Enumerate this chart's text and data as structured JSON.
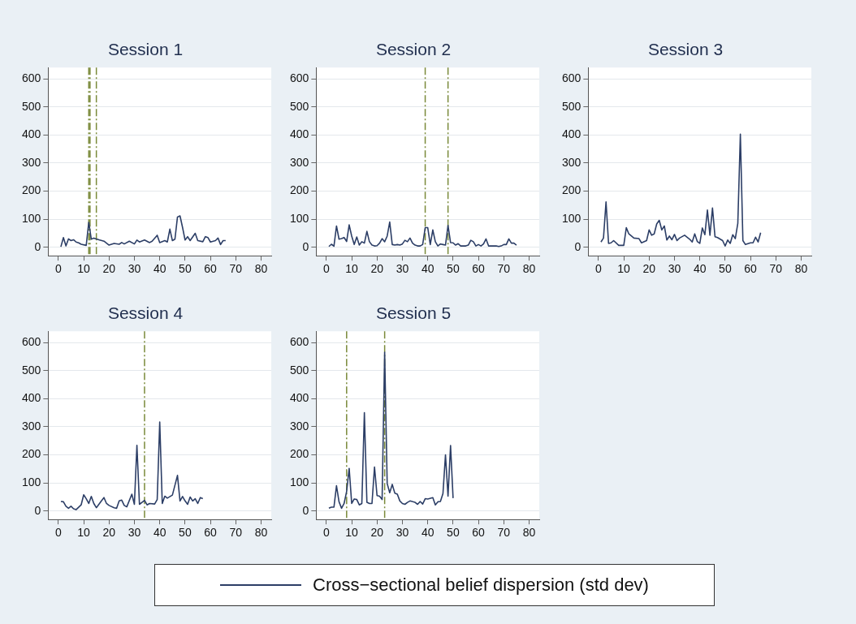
{
  "chart_data": [
    {
      "type": "line",
      "title": "Session 1",
      "xlim": [
        -4,
        84
      ],
      "xticks": [
        0,
        10,
        20,
        30,
        40,
        50,
        60,
        70,
        80
      ],
      "ylim": [
        -30,
        640
      ],
      "yticks": [
        0,
        100,
        200,
        300,
        400,
        500,
        600
      ],
      "grid": "y",
      "legend": "bottom",
      "marker": "none",
      "line_style": "solid",
      "ref_lines": [
        {
          "axis": "x",
          "value": 12,
          "color": "#7a8a3a",
          "line_style": "dashed"
        },
        {
          "axis": "x",
          "value": 12.5,
          "color": "#7a8a3a",
          "line_style": "dashed"
        },
        {
          "axis": "x",
          "value": 15,
          "color": "#7a8a3a",
          "line_style": "dashed"
        }
      ],
      "series": [
        {
          "name": "Cross−sectional belief dispersion (std dev)",
          "color": "#2c3e66",
          "x": [
            1,
            2,
            3,
            4,
            5,
            6,
            7,
            8,
            9,
            11,
            12,
            13,
            14,
            16,
            18,
            20,
            22,
            24,
            25,
            26,
            28,
            30,
            31,
            32,
            34,
            36,
            37,
            39,
            40,
            42,
            43,
            44,
            45,
            46,
            47,
            48,
            49,
            50,
            51,
            52,
            54,
            55,
            57,
            58,
            59,
            60,
            62,
            63,
            64,
            65,
            66
          ],
          "values": [
            2,
            35,
            5,
            30,
            24,
            27,
            19,
            16,
            11,
            7,
            89,
            29,
            33,
            27,
            22,
            8,
            14,
            11,
            17,
            12,
            22,
            12,
            26,
            19,
            26,
            17,
            22,
            43,
            17,
            24,
            19,
            65,
            24,
            29,
            108,
            112,
            71,
            26,
            38,
            24,
            50,
            24,
            20,
            38,
            35,
            19,
            24,
            33,
            10,
            24,
            24
          ]
        }
      ]
    },
    {
      "type": "line",
      "title": "Session 2",
      "xlim": [
        -4,
        84
      ],
      "xticks": [
        0,
        10,
        20,
        30,
        40,
        50,
        60,
        70,
        80
      ],
      "ylim": [
        -30,
        640
      ],
      "yticks": [
        0,
        100,
        200,
        300,
        400,
        500,
        600
      ],
      "grid": "y",
      "legend": "bottom",
      "marker": "none",
      "line_style": "solid",
      "ref_lines": [
        {
          "axis": "x",
          "value": 39,
          "color": "#7a8a3a",
          "line_style": "dashed"
        },
        {
          "axis": "x",
          "value": 48,
          "color": "#7a8a3a",
          "line_style": "dashed"
        }
      ],
      "series": [
        {
          "name": "Cross−sectional belief dispersion (std dev)",
          "color": "#2c3e66",
          "x": [
            1,
            2,
            3,
            4,
            5,
            6,
            7,
            8,
            9,
            10,
            11,
            12,
            13,
            14,
            15,
            16,
            17,
            18,
            19,
            20,
            21,
            22,
            23,
            24,
            25,
            26,
            27,
            28,
            29,
            30,
            31,
            32,
            33,
            34,
            35,
            36,
            37,
            38,
            39,
            40,
            41,
            42,
            43,
            44,
            45,
            46,
            47,
            48,
            49,
            50,
            51,
            52,
            53,
            54,
            55,
            56,
            57,
            58,
            59,
            60,
            61,
            62,
            63,
            64,
            65,
            66,
            67,
            68,
            69,
            70,
            71,
            72,
            73,
            74,
            75
          ],
          "values": [
            3,
            11,
            4,
            76,
            29,
            31,
            35,
            21,
            80,
            40,
            10,
            37,
            8,
            20,
            15,
            57,
            20,
            8,
            5,
            6,
            15,
            31,
            20,
            40,
            90,
            10,
            8,
            10,
            8,
            12,
            25,
            20,
            33,
            15,
            8,
            5,
            5,
            10,
            70,
            70,
            10,
            62,
            20,
            5,
            12,
            10,
            8,
            78,
            17,
            16,
            8,
            13,
            5,
            5,
            5,
            8,
            25,
            20,
            5,
            10,
            5,
            12,
            30,
            5,
            5,
            5,
            5,
            3,
            5,
            10,
            10,
            30,
            15,
            15,
            8
          ]
        }
      ]
    },
    {
      "type": "line",
      "title": "Session 3",
      "xlim": [
        -4,
        84
      ],
      "xticks": [
        0,
        10,
        20,
        30,
        40,
        50,
        60,
        70,
        80
      ],
      "ylim": [
        -30,
        640
      ],
      "yticks": [
        0,
        100,
        200,
        300,
        400,
        500,
        600
      ],
      "grid": "y",
      "legend": "bottom",
      "marker": "none",
      "line_style": "solid",
      "series": [
        {
          "name": "Cross−sectional belief dispersion (std dev)",
          "color": "#2c3e66",
          "x": [
            1,
            2,
            3,
            4,
            5,
            6,
            8,
            10,
            11,
            12,
            14,
            16,
            17,
            19,
            20,
            21,
            22,
            23,
            24,
            25,
            26,
            27,
            28,
            29,
            30,
            31,
            32,
            34,
            36,
            37,
            38,
            39,
            40,
            41,
            42,
            43,
            44,
            45,
            46,
            47,
            49,
            50,
            51,
            52,
            53,
            54,
            55,
            56,
            57,
            58,
            60,
            61,
            62,
            63,
            64
          ],
          "values": [
            19,
            33,
            162,
            14,
            16,
            24,
            7,
            7,
            70,
            48,
            33,
            31,
            16,
            24,
            62,
            43,
            48,
            83,
            96,
            62,
            76,
            26,
            40,
            27,
            46,
            24,
            33,
            43,
            29,
            19,
            48,
            21,
            14,
            69,
            45,
            133,
            43,
            140,
            38,
            35,
            24,
            5,
            26,
            14,
            45,
            31,
            86,
            403,
            24,
            10,
            16,
            16,
            36,
            19,
            52
          ]
        }
      ]
    },
    {
      "type": "line",
      "title": "Session 4",
      "xlim": [
        -4,
        84
      ],
      "xticks": [
        0,
        10,
        20,
        30,
        40,
        50,
        60,
        70,
        80
      ],
      "ylim": [
        -30,
        640
      ],
      "yticks": [
        0,
        100,
        200,
        300,
        400,
        500,
        600
      ],
      "grid": "y",
      "legend": "bottom",
      "marker": "none",
      "line_style": "solid",
      "ref_lines": [
        {
          "axis": "x",
          "value": 34,
          "color": "#7a8a3a",
          "line_style": "dashed"
        }
      ],
      "series": [
        {
          "name": "Cross−sectional belief dispersion (std dev)",
          "color": "#2c3e66",
          "x": [
            1,
            2,
            3,
            4,
            5,
            6,
            7,
            9,
            10,
            11,
            12,
            13,
            14,
            15,
            17,
            18,
            19,
            20,
            22,
            23,
            24,
            25,
            26,
            27,
            29,
            30,
            31,
            32,
            33,
            34,
            35,
            36,
            38,
            39,
            40,
            41,
            42,
            43,
            45,
            47,
            48,
            49,
            50,
            51,
            52,
            53,
            54,
            55,
            56,
            57
          ],
          "values": [
            34,
            33,
            17,
            10,
            17,
            8,
            5,
            22,
            58,
            44,
            27,
            52,
            27,
            12,
            36,
            48,
            27,
            20,
            12,
            10,
            36,
            39,
            20,
            15,
            60,
            24,
            234,
            24,
            31,
            38,
            22,
            27,
            25,
            41,
            317,
            27,
            53,
            46,
            57,
            127,
            36,
            52,
            36,
            24,
            50,
            36,
            44,
            27,
            48,
            44
          ]
        }
      ]
    },
    {
      "type": "line",
      "title": "Session 5",
      "xlim": [
        -4,
        84
      ],
      "xticks": [
        0,
        10,
        20,
        30,
        40,
        50,
        60,
        70,
        80
      ],
      "ylim": [
        -30,
        640
      ],
      "yticks": [
        0,
        100,
        200,
        300,
        400,
        500,
        600
      ],
      "grid": "y",
      "legend": "bottom",
      "marker": "none",
      "line_style": "solid",
      "ref_lines": [
        {
          "axis": "x",
          "value": 8,
          "color": "#7a8a3a",
          "line_style": "dashed"
        },
        {
          "axis": "x",
          "value": 23,
          "color": "#7a8a3a",
          "line_style": "dashed"
        }
      ],
      "series": [
        {
          "name": "Cross−sectional belief dispersion (std dev)",
          "color": "#2c3e66",
          "x": [
            1,
            2,
            3,
            4,
            5,
            6,
            7,
            8,
            9,
            10,
            11,
            12,
            13,
            14,
            15,
            16,
            17,
            18,
            19,
            20,
            21,
            22,
            23,
            24,
            25,
            26,
            27,
            28,
            29,
            30,
            31,
            32,
            33,
            35,
            36,
            37,
            38,
            39,
            40,
            42,
            43,
            44,
            45,
            46,
            47,
            48,
            49,
            50
          ],
          "values": [
            10,
            14,
            14,
            90,
            33,
            10,
            27,
            70,
            152,
            27,
            43,
            41,
            22,
            27,
            350,
            31,
            27,
            27,
            157,
            55,
            53,
            41,
            565,
            98,
            65,
            95,
            64,
            60,
            36,
            27,
            24,
            31,
            36,
            31,
            24,
            34,
            25,
            44,
            43,
            48,
            22,
            33,
            34,
            62,
            200,
            53,
            233,
            46
          ]
        }
      ]
    }
  ]
}
